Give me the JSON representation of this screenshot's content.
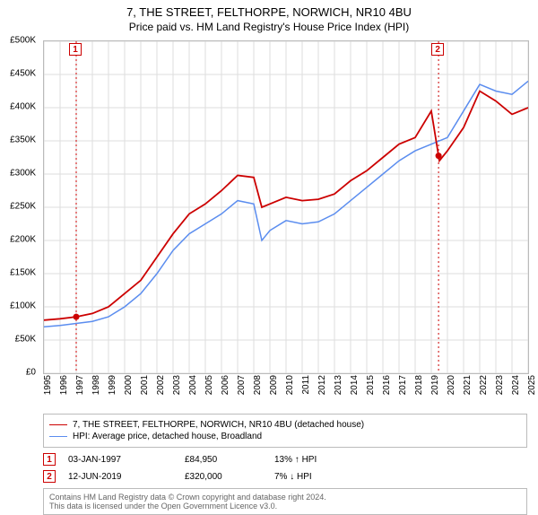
{
  "title_line1": "7, THE STREET, FELTHORPE, NORWICH, NR10 4BU",
  "title_line2": "Price paid vs. HM Land Registry's House Price Index (HPI)",
  "chart": {
    "type": "line",
    "background_color": "#ffffff",
    "grid_color": "#dddddd",
    "border_color": "#bbbbbb",
    "ylim": [
      0,
      500000
    ],
    "ytick_step": 50000,
    "ytick_labels": [
      "£0",
      "£50K",
      "£100K",
      "£150K",
      "£200K",
      "£250K",
      "£300K",
      "£350K",
      "£400K",
      "£450K",
      "£500K"
    ],
    "xlim": [
      1995,
      2025
    ],
    "xtick_step": 1,
    "xtick_labels": [
      "1995",
      "1996",
      "1997",
      "1998",
      "1999",
      "2000",
      "2001",
      "2002",
      "2003",
      "2004",
      "2005",
      "2006",
      "2007",
      "2008",
      "2009",
      "2010",
      "2011",
      "2012",
      "2013",
      "2014",
      "2015",
      "2016",
      "2017",
      "2018",
      "2019",
      "2020",
      "2021",
      "2022",
      "2023",
      "2024",
      "2025"
    ],
    "series": [
      {
        "name": "price_paid",
        "label": "7, THE STREET, FELTHORPE, NORWICH, NR10 4BU (detached house)",
        "color": "#cc0000",
        "line_width": 1.8,
        "x": [
          1995,
          1996,
          1997,
          1998,
          1999,
          2000,
          2001,
          2002,
          2003,
          2004,
          2005,
          2006,
          2007,
          2008,
          2008.5,
          2009,
          2010,
          2011,
          2012,
          2013,
          2014,
          2015,
          2016,
          2017,
          2018,
          2019,
          2019.5,
          2020,
          2021,
          2022,
          2023,
          2024,
          2025
        ],
        "y": [
          80000,
          82000,
          85000,
          90000,
          100000,
          120000,
          140000,
          175000,
          210000,
          240000,
          255000,
          275000,
          298000,
          295000,
          250000,
          255000,
          265000,
          260000,
          262000,
          270000,
          290000,
          305000,
          325000,
          345000,
          355000,
          395000,
          320000,
          335000,
          370000,
          425000,
          410000,
          390000,
          400000
        ]
      },
      {
        "name": "hpi",
        "label": "HPI: Average price, detached house, Broadland",
        "color": "#5b8def",
        "line_width": 1.5,
        "x": [
          1995,
          1996,
          1997,
          1998,
          1999,
          2000,
          2001,
          2002,
          2003,
          2004,
          2005,
          2006,
          2007,
          2008,
          2008.5,
          2009,
          2010,
          2011,
          2012,
          2013,
          2014,
          2015,
          2016,
          2017,
          2018,
          2019,
          2020,
          2021,
          2022,
          2023,
          2024,
          2025
        ],
        "y": [
          70000,
          72000,
          75000,
          78000,
          85000,
          100000,
          120000,
          150000,
          185000,
          210000,
          225000,
          240000,
          260000,
          255000,
          200000,
          215000,
          230000,
          225000,
          228000,
          240000,
          260000,
          280000,
          300000,
          320000,
          335000,
          345000,
          355000,
          395000,
          435000,
          425000,
          420000,
          440000
        ]
      }
    ],
    "sale_markers": [
      {
        "label": "1",
        "x": 1997.0,
        "line_color": "#cc0000",
        "dot_color": "#cc0000"
      },
      {
        "label": "2",
        "x": 2019.45,
        "line_color": "#cc0000",
        "dot_color": "#cc0000"
      }
    ],
    "label_fontsize": 10,
    "title_fontsize": 13
  },
  "legend": {
    "rows": [
      {
        "color": "#cc0000",
        "width": 1.8,
        "text": "7, THE STREET, FELTHORPE, NORWICH, NR10 4BU (detached house)"
      },
      {
        "color": "#5b8def",
        "width": 1.5,
        "text": "HPI: Average price, detached house, Broadland"
      }
    ]
  },
  "sales": [
    {
      "marker": "1",
      "date": "03-JAN-1997",
      "price": "£84,950",
      "diff": "13% ↑ HPI"
    },
    {
      "marker": "2",
      "date": "12-JUN-2019",
      "price": "£320,000",
      "diff": "7% ↓ HPI"
    }
  ],
  "footer_line1": "Contains HM Land Registry data © Crown copyright and database right 2024.",
  "footer_line2": "This data is licensed under the Open Government Licence v3.0."
}
